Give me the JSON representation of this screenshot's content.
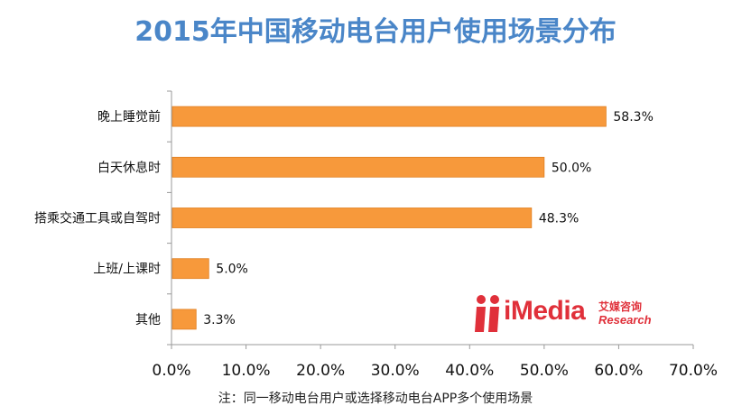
{
  "title": "2015年中国移动电台用户使用场景分布",
  "footnote": "注：同一移动电台用户或选择移动电台APP多个使用场景",
  "logo": {
    "brand": "iMedia",
    "cn": "艾媒咨询",
    "en": "Research"
  },
  "colors": {
    "bar": "#f7993b",
    "bar_edge": "#e07f20",
    "title": "#4a86c8",
    "logo": "#e0303a"
  },
  "chart_data": {
    "type": "bar",
    "orientation": "horizontal",
    "categories": [
      "晚上睡觉前",
      "白天休息时",
      "搭乘交通工具或自驾时",
      "上班/上课时",
      "其他"
    ],
    "values": [
      58.3,
      50.0,
      48.3,
      5.0,
      3.3
    ],
    "value_labels": [
      "58.3%",
      "50.0%",
      "48.3%",
      "5.0%",
      "3.3%"
    ],
    "xlim": [
      0,
      70
    ],
    "xticks": [
      "0.0%",
      "10.0%",
      "20.0%",
      "30.0%",
      "40.0%",
      "50.0%",
      "60.0%",
      "70.0%"
    ],
    "grid": false,
    "legend": "none"
  }
}
